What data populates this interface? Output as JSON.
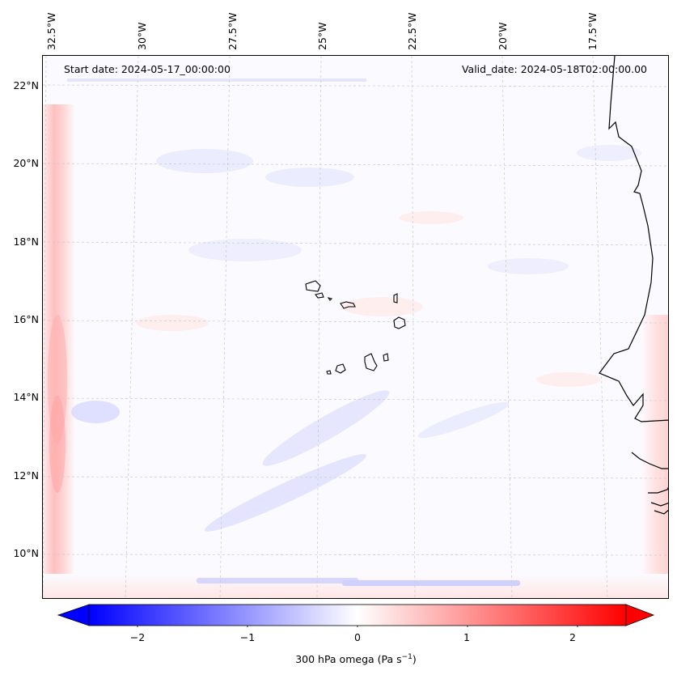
{
  "map": {
    "start_date_text": "Start date: 2024-05-17_00:00:00",
    "valid_date_text": "Valid_date: 2024-05-18T02:00:00.00",
    "lon_labels": [
      "32.5°W",
      "30°W",
      "27.5°W",
      "25°W",
      "22.5°W",
      "20°W",
      "17.5°W"
    ],
    "lat_labels": [
      "22°N",
      "20°N",
      "18°N",
      "16°N",
      "14°N",
      "12°N",
      "10°N"
    ],
    "field": "300 hPa omega",
    "colors": {
      "negative": "#0000ff",
      "zero": "#ffffff",
      "positive": "#ff0000",
      "coast": "#000000",
      "grid": "#bbbbbb"
    }
  },
  "colorbar": {
    "ticks": [
      "−2",
      "−1",
      "0",
      "1",
      "2"
    ],
    "label_prefix": "300 hPa omega (Pa s",
    "label_exp": "−1",
    "label_suffix": ")",
    "min": -2.6,
    "max": 2.6
  }
}
